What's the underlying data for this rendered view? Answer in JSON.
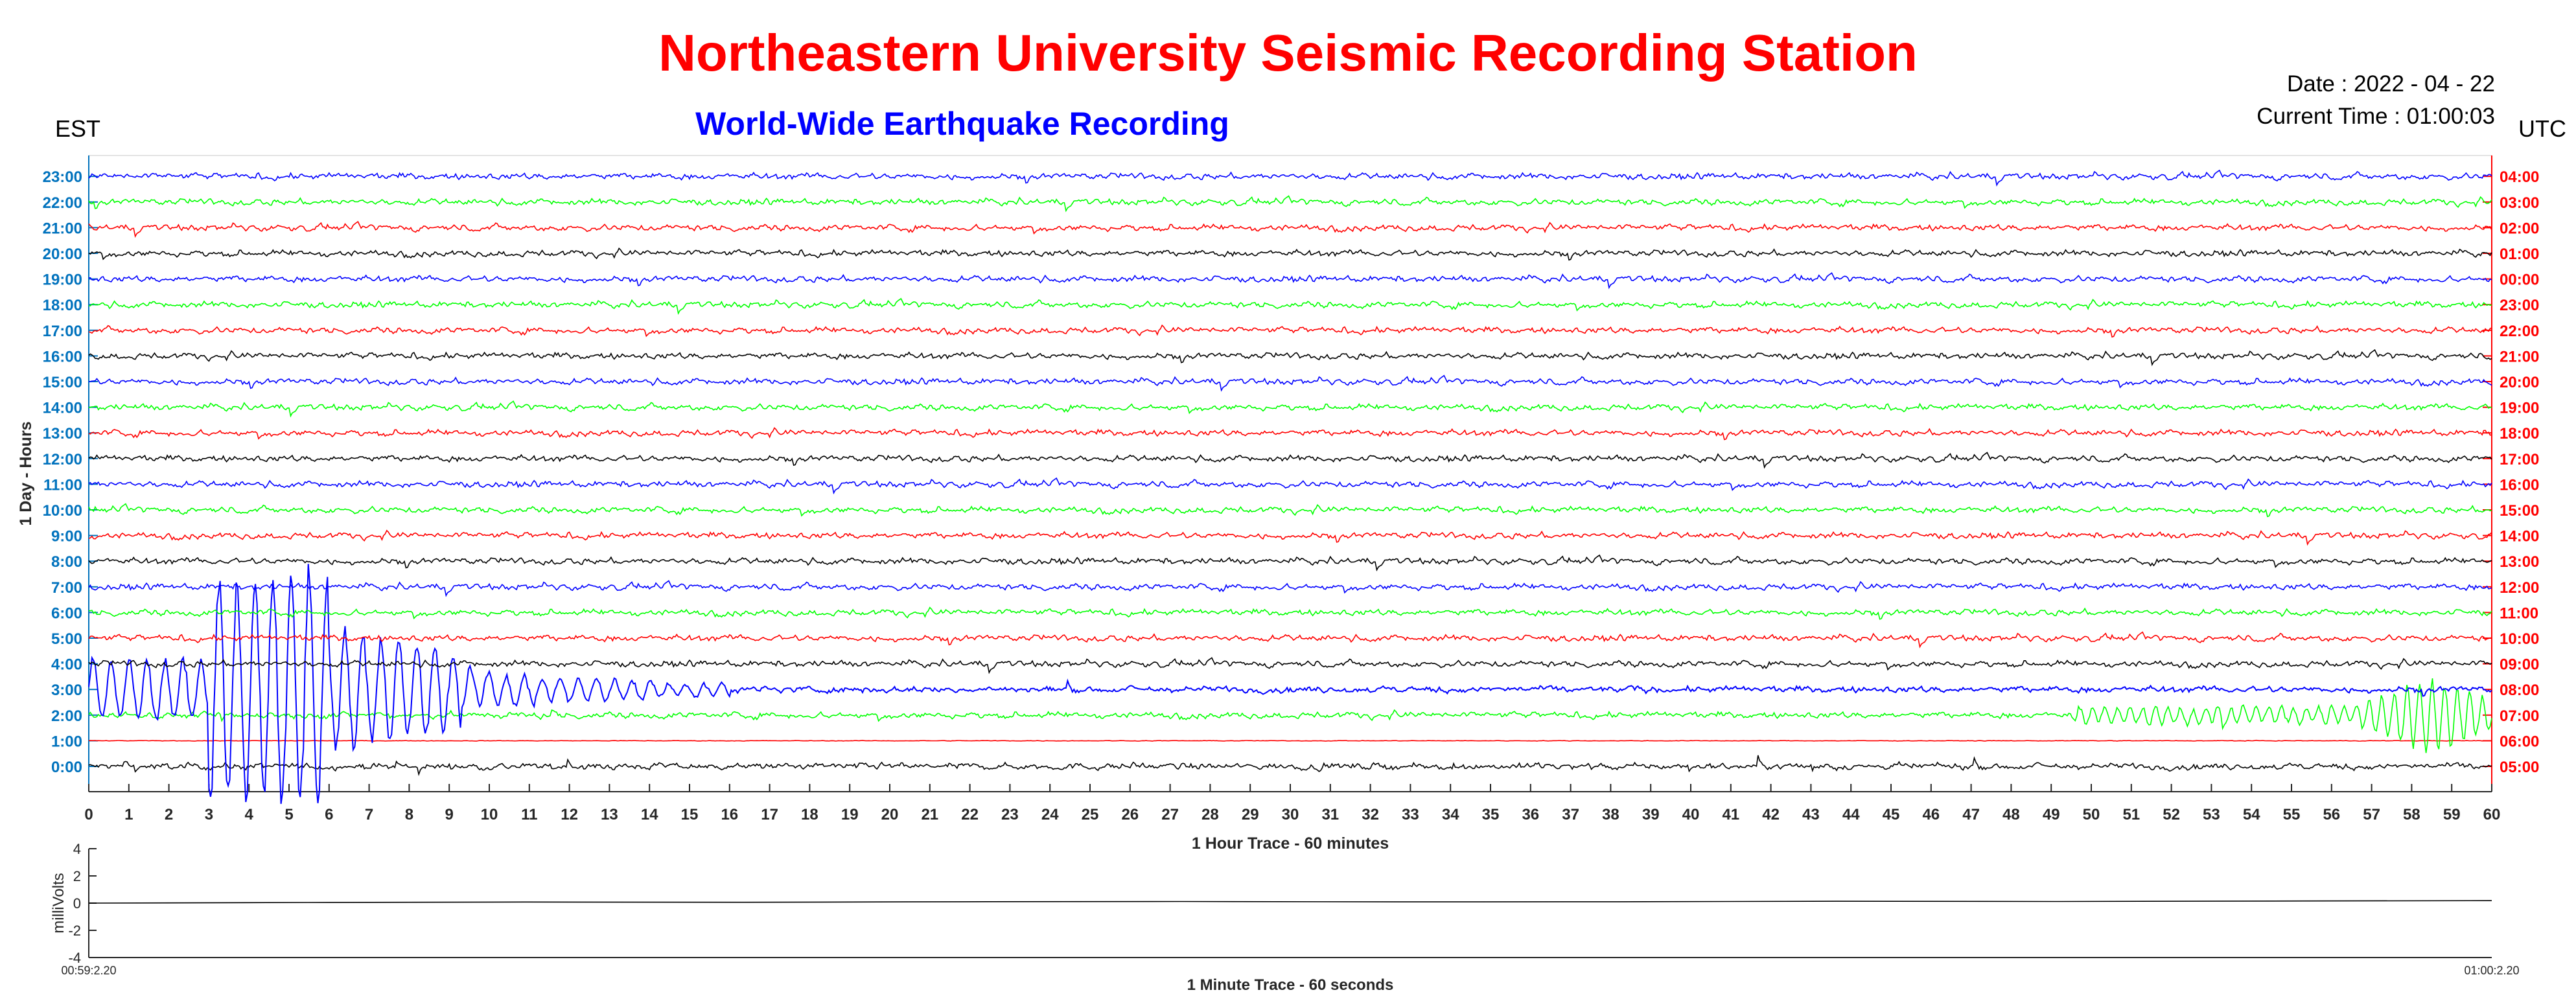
{
  "header": {
    "title": "Northeastern University Seismic Recording Station",
    "subtitle": "World-Wide Earthquake Recording",
    "date": "Date : 2022 - 04 - 22",
    "current_time": "Current Time : 01:00:03",
    "left_tz": "EST",
    "right_tz": "UTC"
  },
  "colors": {
    "title": "#ff0000",
    "subtitle": "#0000ff",
    "left_axis": "#0072bd",
    "right_axis": "#ff0000",
    "trace_cycle": [
      "#000000",
      "#ff0000",
      "#00ff00",
      "#0000ff"
    ]
  },
  "chart_data": [
    {
      "type": "line",
      "title": "",
      "xlabel": "1 Hour Trace - 60 minutes",
      "ylabel": "1 Day - Hours",
      "xlim": [
        0,
        60
      ],
      "x_ticks": [
        "0",
        "1",
        "2",
        "3",
        "4",
        "5",
        "6",
        "7",
        "8",
        "9",
        "10",
        "11",
        "12",
        "13",
        "14",
        "15",
        "16",
        "17",
        "18",
        "19",
        "20",
        "21",
        "22",
        "23",
        "24",
        "25",
        "26",
        "27",
        "28",
        "29",
        "30",
        "31",
        "32",
        "33",
        "34",
        "35",
        "36",
        "37",
        "38",
        "39",
        "40",
        "41",
        "42",
        "43",
        "44",
        "45",
        "46",
        "47",
        "48",
        "49",
        "50",
        "51",
        "52",
        "53",
        "54",
        "55",
        "56",
        "57",
        "58",
        "59",
        "60"
      ],
      "left_ticks": [
        "0:00",
        "1:00",
        "2:00",
        "3:00",
        "4:00",
        "5:00",
        "6:00",
        "7:00",
        "8:00",
        "9:00",
        "10:00",
        "11:00",
        "12:00",
        "13:00",
        "14:00",
        "15:00",
        "16:00",
        "17:00",
        "18:00",
        "19:00",
        "20:00",
        "21:00",
        "22:00",
        "23:00"
      ],
      "right_ticks": [
        "05:00",
        "06:00",
        "07:00",
        "08:00",
        "09:00",
        "10:00",
        "11:00",
        "12:00",
        "13:00",
        "14:00",
        "15:00",
        "16:00",
        "17:00",
        "18:00",
        "19:00",
        "20:00",
        "21:00",
        "22:00",
        "23:00",
        "00:00",
        "01:00",
        "02:00",
        "03:00",
        "04:00"
      ],
      "events": [
        {
          "row": 3,
          "start_min": 0.0,
          "peak_min": 4.5,
          "end_min": 16.0,
          "amplitude": "large"
        },
        {
          "row": 2,
          "start_min": 49.5,
          "peak_min": 58.5,
          "end_min": 60.0,
          "amplitude": "moderate"
        }
      ],
      "empty_rows": [
        1
      ]
    },
    {
      "type": "line",
      "title": "",
      "xlabel": "1 Minute Trace  - 60 seconds",
      "ylabel": "milliVolts",
      "ylim": [
        -4,
        4
      ],
      "y_ticks": [
        "-4",
        "-2",
        "0",
        "2",
        "4"
      ],
      "x_start_label": "00:59:2.20",
      "x_end_label": "01:00:2.20",
      "series": [
        {
          "values": [
            0.0,
            0.05,
            0.08,
            0.06,
            0.1,
            0.12,
            0.09,
            0.1,
            0.14,
            0.12,
            0.15,
            0.18
          ]
        }
      ]
    }
  ]
}
